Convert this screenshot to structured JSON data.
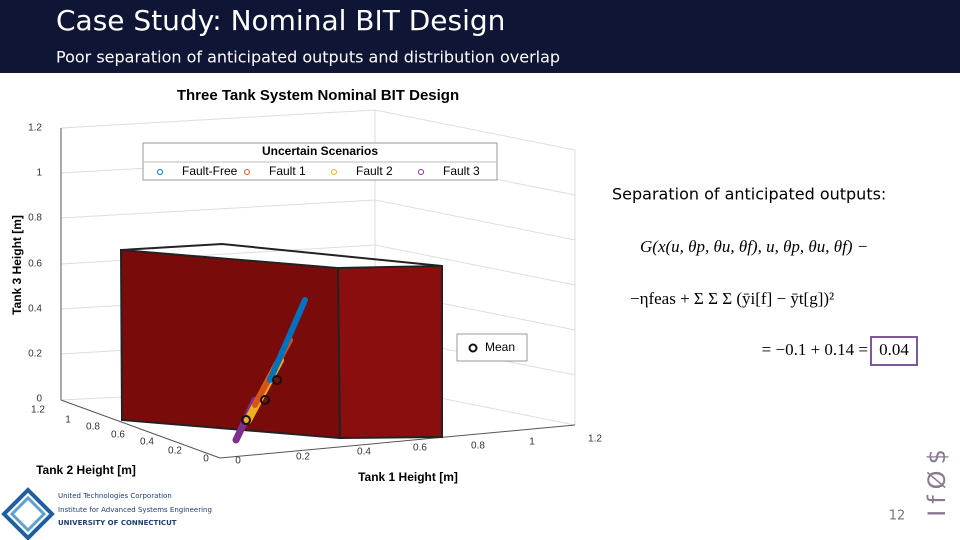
{
  "header": {
    "title": "Case Study: Nominal BIT Design",
    "subtitle": "Poor separation of anticipated outputs and distribution overlap"
  },
  "figure": {
    "title": "Three Tank System Nominal BIT Design",
    "z_label": "Tank 3 Height [m]",
    "y_label": "Tank 2 Height [m]",
    "x_label": "Tank 1 Height [m]",
    "z_ticks": [
      "1.2",
      "1",
      "0.8",
      "0.6",
      "0.4",
      "0.2",
      "0"
    ],
    "y_ticks": [
      "1.2",
      "1",
      "0.8",
      "0.6",
      "0.4",
      "0.2",
      "0"
    ],
    "x_ticks": [
      "0",
      "0.2",
      "0.4",
      "0.6",
      "0.8",
      "1",
      "1.2"
    ],
    "legend_title": "Uncertain Scenarios",
    "legend": [
      "Fault-Free",
      "Fault 1",
      "Fault 2",
      "Fault 3"
    ],
    "mean_legend": "Mean"
  },
  "side": {
    "heading": "Separation of anticipated outputs:",
    "eq_line1": "G(x(u, θp, θu, θf), u, θp, θu, θf) −",
    "eq_line2": "−ηfeas + Σ Σ Σ (ȳi[f] − ȳt[g])²",
    "eq_prefix": "= −0.1 + 0.14 =",
    "eq_result": "0.04"
  },
  "footer": {
    "org1": "United Technologies Corporation",
    "org2": "Institute for Advanced Systems Engineering",
    "org3": "UNIVERSITY OF CONNECTICUT",
    "page": "12",
    "side_mark": "IfØ$"
  }
}
